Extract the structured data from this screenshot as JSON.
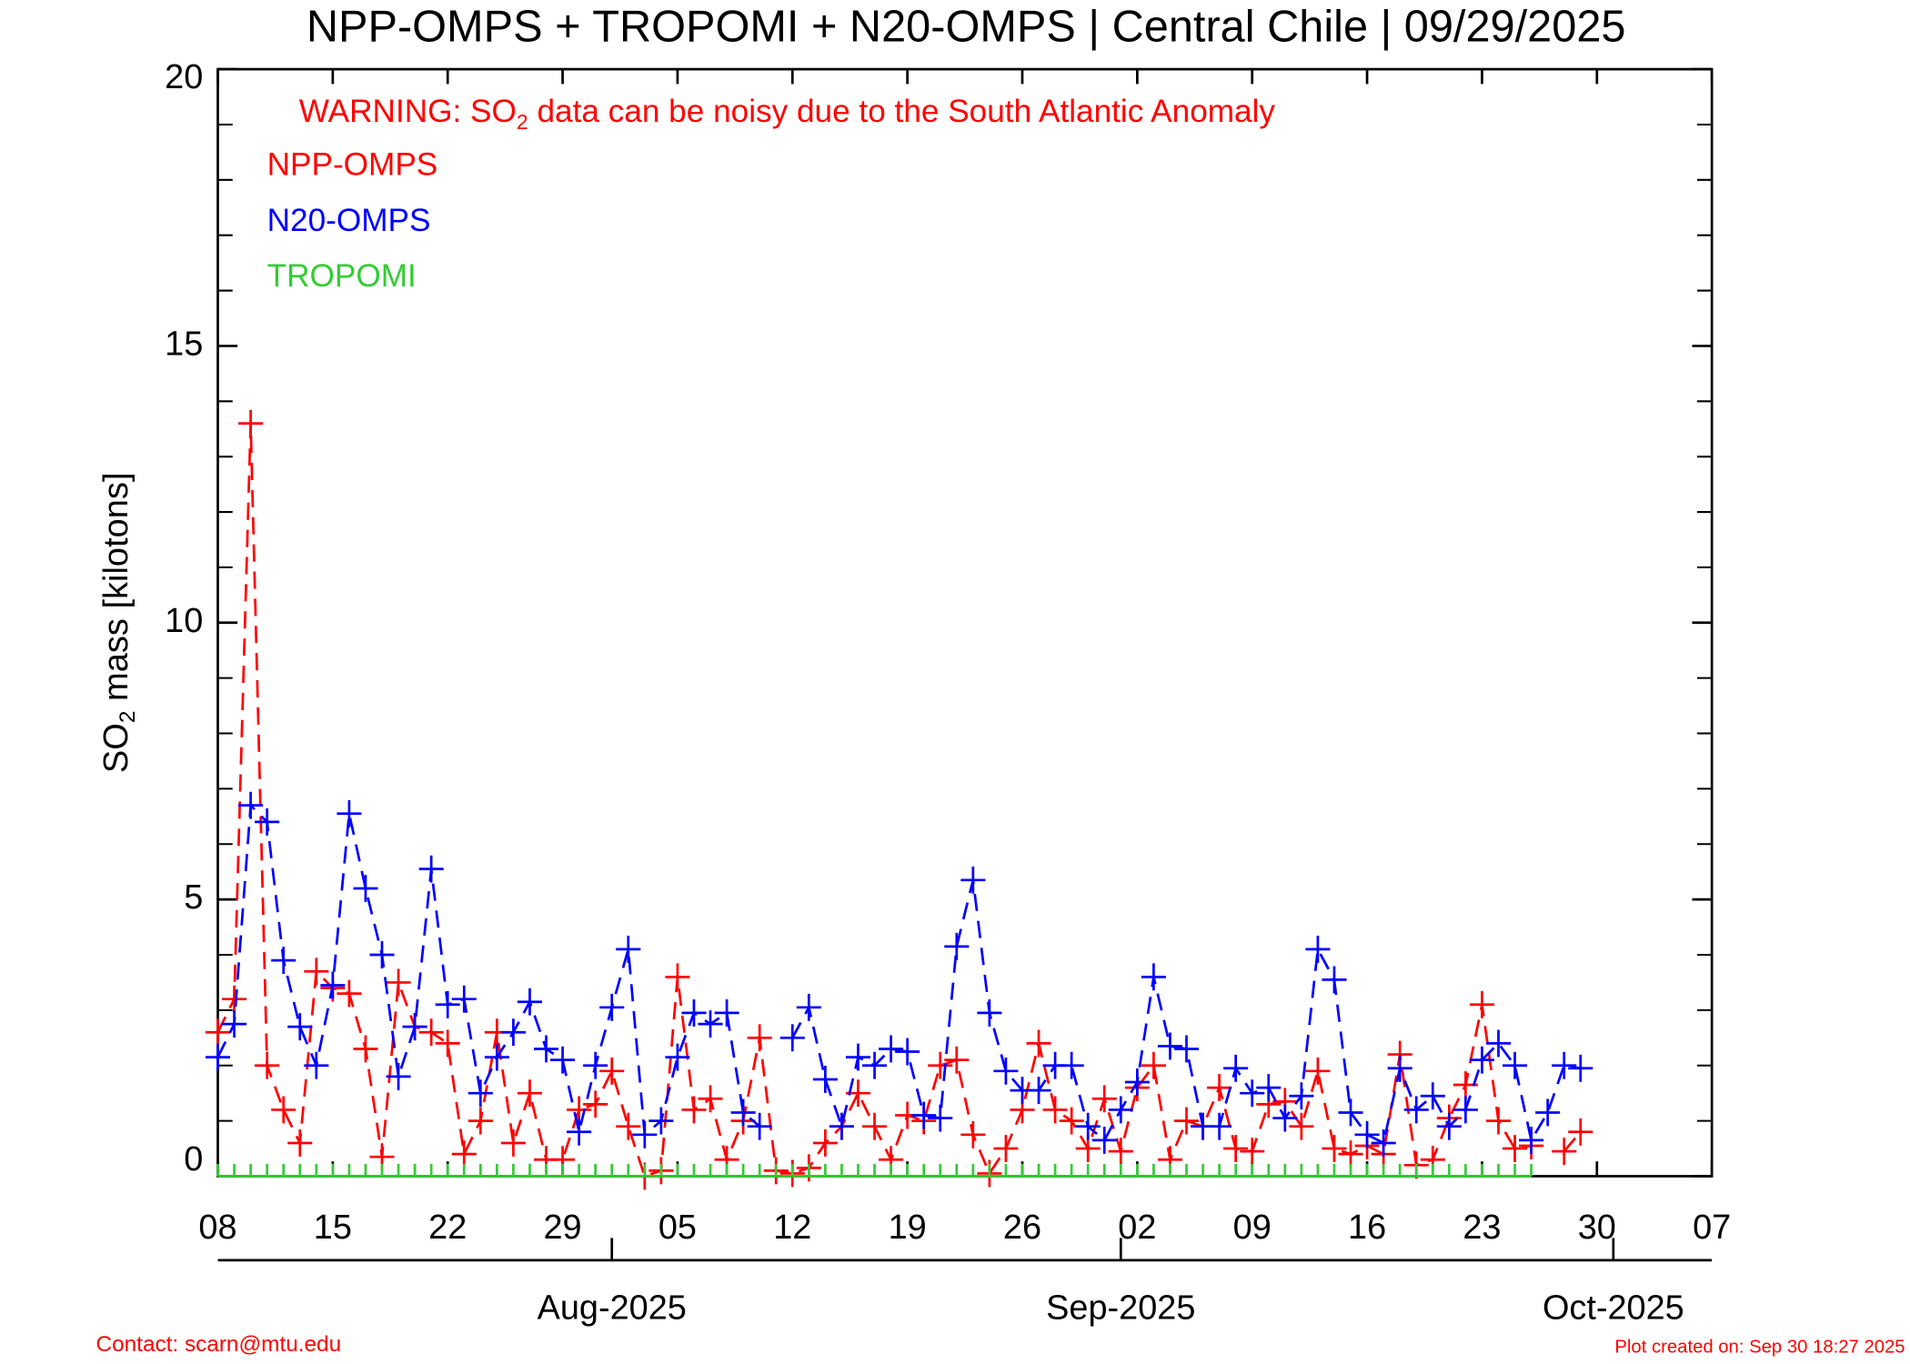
{
  "chart_data": {
    "type": "line",
    "title": "NPP-OMPS + TROPOMI + N20-OMPS | Central Chile | 09/29/2025",
    "warning": [
      "WARNING: SO",
      "2",
      " data can be noisy due to the South Atlantic Anomaly"
    ],
    "ylabel": [
      "SO",
      "2",
      " mass [kilotons]"
    ],
    "contact": "Contact: scarn@mtu.edu",
    "created": "Plot created on: Sep 30 18:27 2025",
    "x": [
      "2025-07-08",
      "2025-07-09",
      "2025-07-10",
      "2025-07-11",
      "2025-07-12",
      "2025-07-13",
      "2025-07-14",
      "2025-07-15",
      "2025-07-16",
      "2025-07-17",
      "2025-07-18",
      "2025-07-19",
      "2025-07-20",
      "2025-07-21",
      "2025-07-22",
      "2025-07-23",
      "2025-07-24",
      "2025-07-25",
      "2025-07-26",
      "2025-07-27",
      "2025-07-28",
      "2025-07-29",
      "2025-07-30",
      "2025-07-31",
      "2025-08-01",
      "2025-08-02",
      "2025-08-03",
      "2025-08-04",
      "2025-08-05",
      "2025-08-06",
      "2025-08-07",
      "2025-08-08",
      "2025-08-09",
      "2025-08-10",
      "2025-08-11",
      "2025-08-12",
      "2025-08-13",
      "2025-08-14",
      "2025-08-15",
      "2025-08-16",
      "2025-08-17",
      "2025-08-18",
      "2025-08-19",
      "2025-08-20",
      "2025-08-21",
      "2025-08-22",
      "2025-08-23",
      "2025-08-24",
      "2025-08-25",
      "2025-08-26",
      "2025-08-27",
      "2025-08-28",
      "2025-08-29",
      "2025-08-30",
      "2025-08-31",
      "2025-09-01",
      "2025-09-02",
      "2025-09-03",
      "2025-09-04",
      "2025-09-05",
      "2025-09-06",
      "2025-09-07",
      "2025-09-08",
      "2025-09-09",
      "2025-09-10",
      "2025-09-11",
      "2025-09-12",
      "2025-09-13",
      "2025-09-14",
      "2025-09-15",
      "2025-09-16",
      "2025-09-17",
      "2025-09-18",
      "2025-09-19",
      "2025-09-20",
      "2025-09-21",
      "2025-09-22",
      "2025-09-23",
      "2025-09-24",
      "2025-09-25",
      "2025-09-26",
      "2025-09-27",
      "2025-09-28",
      "2025-09-29"
    ],
    "series": [
      {
        "name": "NPP-OMPS",
        "color": "#ff0000",
        "values": [
          2.6,
          3.2,
          13.6,
          2.0,
          1.2,
          0.6,
          3.7,
          3.4,
          3.3,
          2.3,
          0.35,
          3.5,
          2.7,
          2.6,
          2.4,
          0.4,
          1.0,
          2.6,
          0.6,
          1.5,
          0.3,
          0.3,
          1.2,
          1.3,
          1.9,
          0.9,
          0,
          0.1,
          3.6,
          1.2,
          1.4,
          0.3,
          1.0,
          2.5,
          0.1,
          0.05,
          0.15,
          0.6,
          0.9,
          1.5,
          0.9,
          0.3,
          1.1,
          1.0,
          2.0,
          2.1,
          0.75,
          0.05,
          0.5,
          1.2,
          2.4,
          1.2,
          1.0,
          0.5,
          1.4,
          0.45,
          1.6,
          2.0,
          0.3,
          1.0,
          0.9,
          1.6,
          0.5,
          0.45,
          1.3,
          1.35,
          0.9,
          1.9,
          0.5,
          0.4,
          0.55,
          0.4,
          2.2,
          0.2,
          0.3,
          1.05,
          1.65,
          3.1,
          1.0,
          0.5,
          0.55,
          null,
          0.45,
          0.8
        ]
      },
      {
        "name": "N20-OMPS",
        "color": "#0000ff",
        "values": [
          2.15,
          2.75,
          6.7,
          6.4,
          3.9,
          2.7,
          2.0,
          3.45,
          6.55,
          5.2,
          4.0,
          1.8,
          2.7,
          5.55,
          3.1,
          3.2,
          1.5,
          2.15,
          2.6,
          3.15,
          2.3,
          2.1,
          0.8,
          2.0,
          3.05,
          4.1,
          0.75,
          1.0,
          2.15,
          2.95,
          2.75,
          2.95,
          1.15,
          0.9,
          null,
          2.5,
          3.05,
          1.75,
          0.9,
          2.15,
          2.0,
          2.3,
          2.25,
          1.1,
          1.05,
          4.15,
          5.35,
          2.95,
          1.9,
          1.55,
          1.55,
          2.0,
          2.0,
          0.9,
          0.65,
          1.2,
          1.7,
          3.6,
          2.35,
          2.3,
          0.9,
          0.9,
          1.95,
          1.5,
          1.6,
          1.05,
          1.45,
          4.1,
          3.55,
          1.15,
          0.75,
          0.6,
          1.95,
          1.2,
          1.45,
          0.9,
          1.2,
          2.1,
          2.4,
          2.0,
          0.65,
          1.15,
          2.0,
          1.95
        ]
      },
      {
        "name": "TROPOMI",
        "color": "#33cc33",
        "values": [
          0,
          0,
          0,
          0,
          0,
          0,
          0,
          0,
          0,
          0,
          0,
          0,
          0,
          0,
          0,
          0,
          0,
          0,
          0,
          0,
          0,
          0,
          0,
          0,
          0,
          0,
          0,
          0,
          0,
          0,
          0,
          0,
          0,
          0,
          0,
          0,
          0,
          0,
          0,
          0,
          0,
          0,
          0,
          0,
          0,
          0,
          0,
          0,
          0,
          0,
          0,
          0,
          0,
          0,
          0,
          0,
          0,
          0,
          0,
          0,
          0,
          0,
          0,
          0,
          0,
          0,
          0,
          0,
          0,
          0,
          0,
          0,
          0,
          0,
          0,
          0,
          0,
          0,
          0,
          0,
          0,
          null,
          null,
          null
        ]
      }
    ],
    "xlim": [
      "2025-07-08",
      "2025-10-07"
    ],
    "xticks": [
      {
        "value": "2025-07-08",
        "label": "08"
      },
      {
        "value": "2025-07-15",
        "label": "15"
      },
      {
        "value": "2025-07-22",
        "label": "22"
      },
      {
        "value": "2025-07-29",
        "label": "29"
      },
      {
        "value": "2025-08-05",
        "label": "05"
      },
      {
        "value": "2025-08-12",
        "label": "12"
      },
      {
        "value": "2025-08-19",
        "label": "19"
      },
      {
        "value": "2025-08-26",
        "label": "26"
      },
      {
        "value": "2025-09-02",
        "label": "02"
      },
      {
        "value": "2025-09-09",
        "label": "09"
      },
      {
        "value": "2025-09-16",
        "label": "16"
      },
      {
        "value": "2025-09-23",
        "label": "23"
      },
      {
        "value": "2025-09-30",
        "label": "30"
      },
      {
        "value": "2025-10-07",
        "label": "07"
      }
    ],
    "month_ticks": [
      {
        "value": "2025-08-01",
        "label": "Aug-2025"
      },
      {
        "value": "2025-09-01",
        "label": "Sep-2025"
      },
      {
        "value": "2025-10-01",
        "label": "Oct-2025"
      }
    ],
    "ylim": [
      0,
      20
    ],
    "yticks": [
      0,
      5,
      10,
      15,
      20
    ],
    "yminor": [
      1,
      2,
      3,
      4,
      6,
      7,
      8,
      9,
      11,
      12,
      13,
      14,
      16,
      17,
      18,
      19
    ]
  }
}
